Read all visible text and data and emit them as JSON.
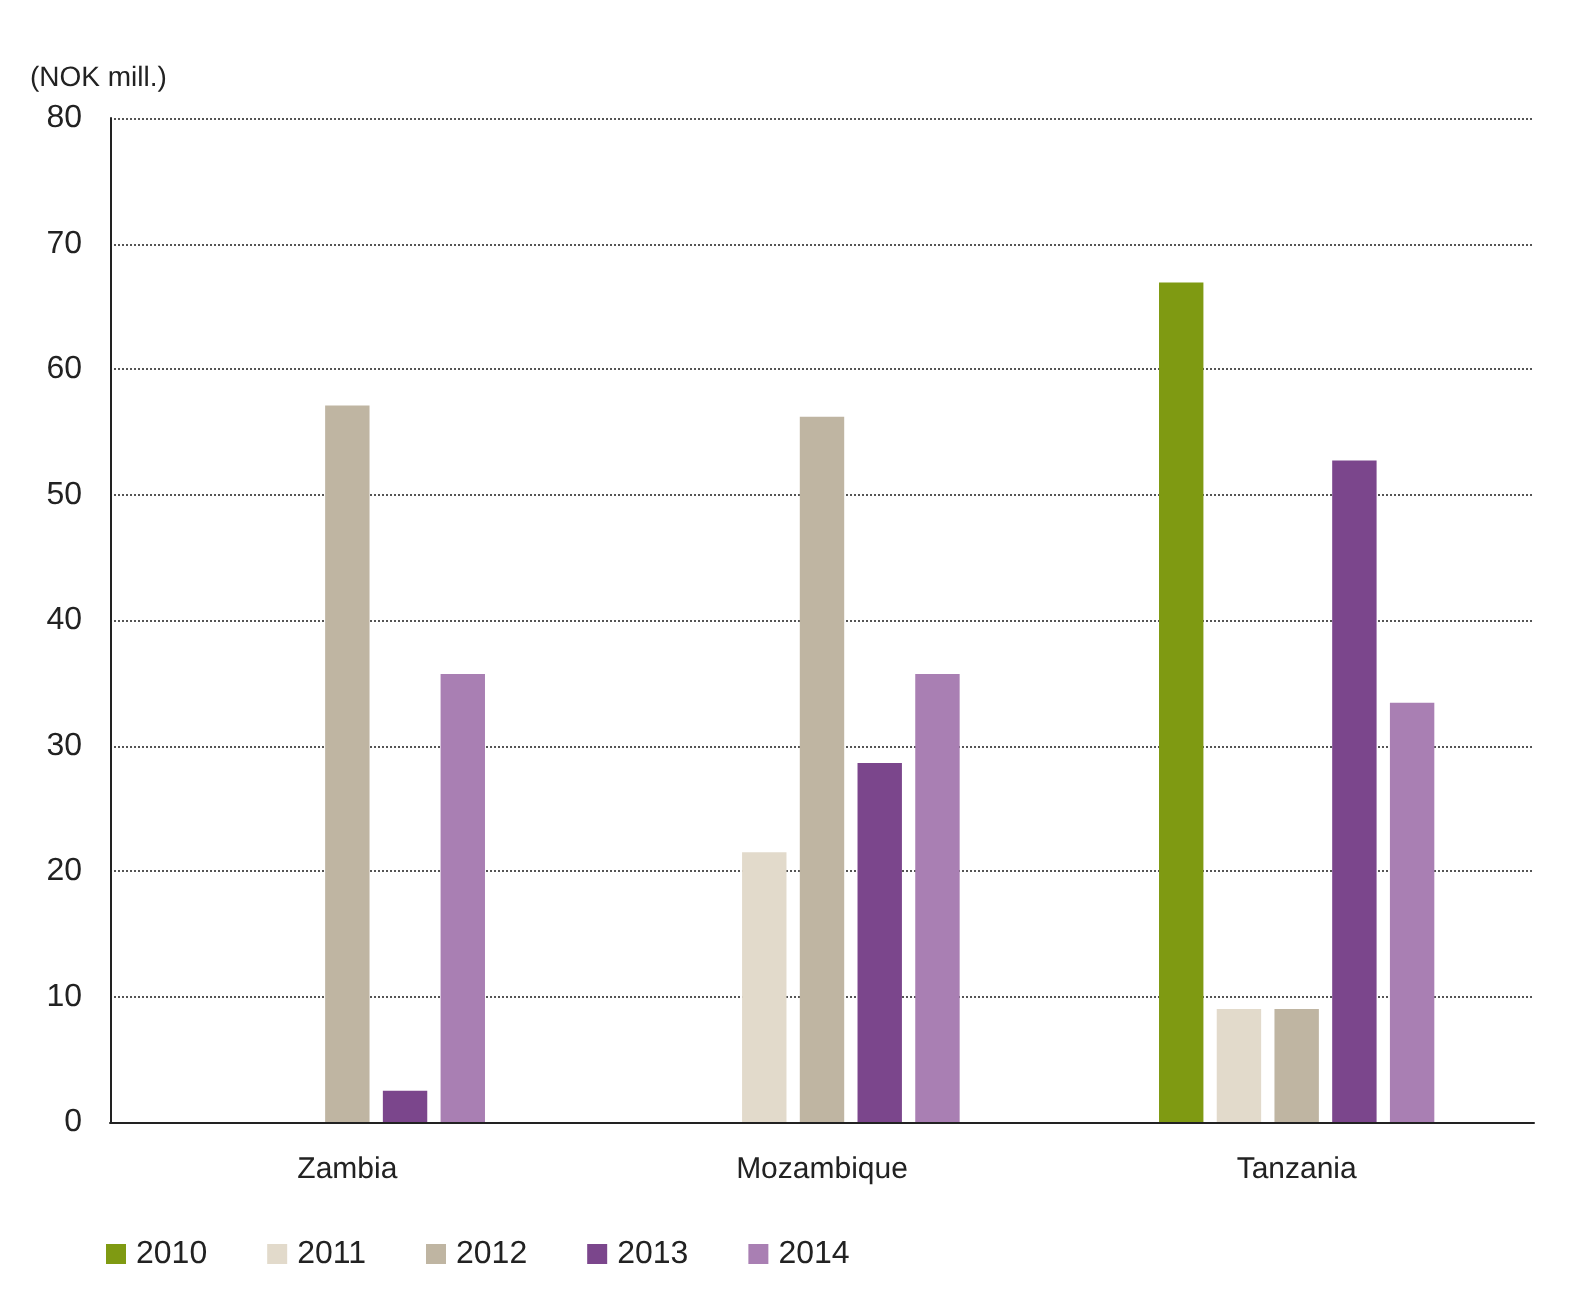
{
  "chart_data": {
    "type": "bar",
    "ylabel": "(NOK mill.)",
    "categories": [
      "Zambia",
      "Mozambique",
      "Tanzania"
    ],
    "series": [
      {
        "name": "2010",
        "color": "#7f9a12",
        "values": [
          null,
          null,
          66.9
        ]
      },
      {
        "name": "2011",
        "color": "#e2dacb",
        "values": [
          null,
          21.5,
          9.0
        ]
      },
      {
        "name": "2012",
        "color": "#bfb5a2",
        "values": [
          57.1,
          56.2,
          9.0
        ]
      },
      {
        "name": "2013",
        "color": "#7b468c",
        "values": [
          2.5,
          28.6,
          52.7
        ]
      },
      {
        "name": "2014",
        "color": "#a97fb3",
        "values": [
          35.7,
          35.7,
          33.4
        ]
      }
    ],
    "ylim": [
      0,
      80
    ],
    "yticks": [
      0,
      10,
      20,
      30,
      40,
      50,
      60,
      70,
      80
    ],
    "grid": "y",
    "legend": "bottom left"
  }
}
